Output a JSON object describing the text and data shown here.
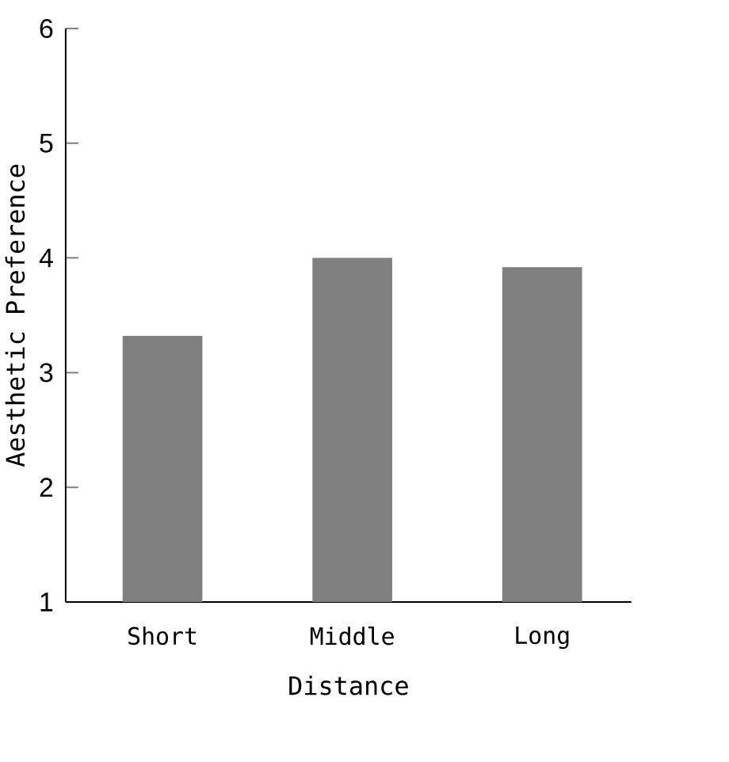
{
  "chart_data": {
    "type": "bar",
    "xlabel": "Distance",
    "ylabel": "Aesthetic Preference",
    "categories": [
      "Short",
      "Middle",
      "Long"
    ],
    "values": [
      3.32,
      4.0,
      3.92
    ],
    "color": "#808080",
    "ylim": [
      1,
      6
    ],
    "yticks": [
      1,
      2,
      3,
      4,
      5,
      6
    ],
    "grid": false
  }
}
